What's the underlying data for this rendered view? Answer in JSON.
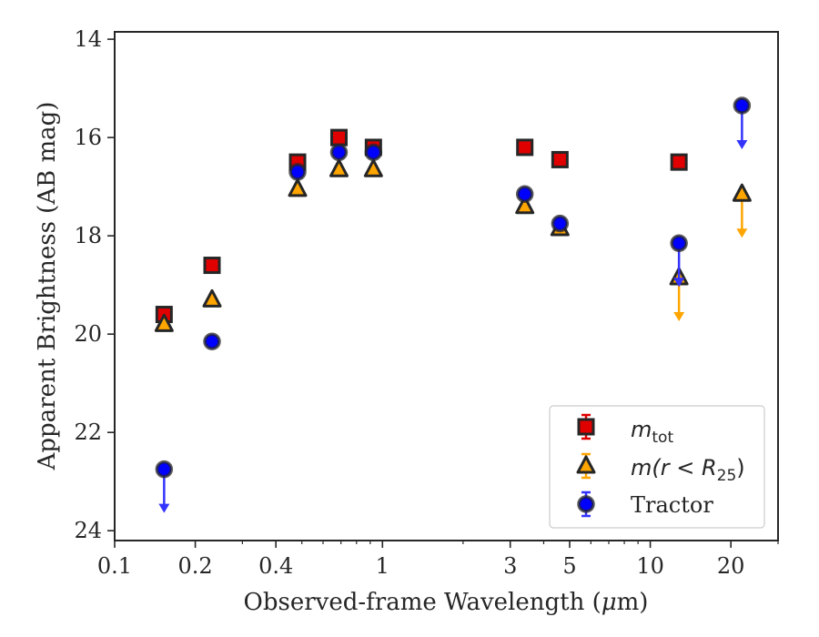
{
  "chart_data": {
    "type": "scatter",
    "xlabel_pre": "Observed-frame Wavelength (",
    "xlabel_mu": "μ",
    "xlabel_post": "m)",
    "ylabel": "Apparent Brightness (AB mag)",
    "xscale": "log",
    "xlim": [
      0.1,
      30
    ],
    "ylim": [
      24.2,
      13.85
    ],
    "y_inverted": true,
    "grid": false,
    "legend_position": "lower-right",
    "x_ticks": [
      {
        "value": 0.1,
        "label": "0.1"
      },
      {
        "value": 0.2,
        "label": "0.2"
      },
      {
        "value": 0.4,
        "label": "0.4"
      },
      {
        "value": 1,
        "label": "1"
      },
      {
        "value": 3,
        "label": "3"
      },
      {
        "value": 5,
        "label": "5"
      },
      {
        "value": 10,
        "label": "10"
      },
      {
        "value": 20,
        "label": "20"
      }
    ],
    "y_ticks": [
      {
        "value": 14,
        "label": "14"
      },
      {
        "value": 16,
        "label": "16"
      },
      {
        "value": 18,
        "label": "18"
      },
      {
        "value": 20,
        "label": "20"
      },
      {
        "value": 22,
        "label": "22"
      },
      {
        "value": 24,
        "label": "24"
      }
    ],
    "series": [
      {
        "key": "mtot",
        "marker": "square",
        "face_color": "#e00000",
        "edge_color": "#262626",
        "err_color": "#e00000",
        "points": [
          {
            "x": 0.153,
            "y": 19.6
          },
          {
            "x": 0.231,
            "y": 18.6
          },
          {
            "x": 0.482,
            "y": 16.5
          },
          {
            "x": 0.688,
            "y": 16.0
          },
          {
            "x": 0.925,
            "y": 16.2
          },
          {
            "x": 3.4,
            "y": 16.2
          },
          {
            "x": 4.6,
            "y": 16.45
          },
          {
            "x": 12.8,
            "y": 16.5
          }
        ]
      },
      {
        "key": "mr25",
        "marker": "triangle",
        "face_color": "#ffa500",
        "edge_color": "#262626",
        "err_color": "#ffa500",
        "points": [
          {
            "x": 0.153,
            "y": 19.8
          },
          {
            "x": 0.231,
            "y": 19.3
          },
          {
            "x": 0.482,
            "y": 17.05
          },
          {
            "x": 0.688,
            "y": 16.65
          },
          {
            "x": 0.925,
            "y": 16.65
          },
          {
            "x": 3.4,
            "y": 17.4
          },
          {
            "x": 4.6,
            "y": 17.85
          },
          {
            "x": 12.8,
            "y": 18.85,
            "upper_limit": true
          },
          {
            "x": 22.0,
            "y": 17.15,
            "upper_limit": true
          }
        ]
      },
      {
        "key": "tractor",
        "marker": "circle",
        "face_color": "#0000ff",
        "edge_color": "#262626",
        "err_color": "#3333ff",
        "points": [
          {
            "x": 0.153,
            "y": 22.75,
            "upper_limit": true
          },
          {
            "x": 0.231,
            "y": 20.15
          },
          {
            "x": 0.482,
            "y": 16.7
          },
          {
            "x": 0.688,
            "y": 16.3
          },
          {
            "x": 0.925,
            "y": 16.3
          },
          {
            "x": 3.4,
            "y": 17.15
          },
          {
            "x": 4.6,
            "y": 17.75
          },
          {
            "x": 12.8,
            "y": 18.15,
            "upper_limit": true
          },
          {
            "x": 22.0,
            "y": 15.35,
            "upper_limit": true
          }
        ]
      }
    ],
    "legend": {
      "mtot": {
        "base": "m",
        "sub": "tot"
      },
      "mr25": {
        "pre": "m(r < R",
        "sub": "25",
        "post": ")"
      },
      "tractor": {
        "text": "Tractor"
      }
    }
  }
}
